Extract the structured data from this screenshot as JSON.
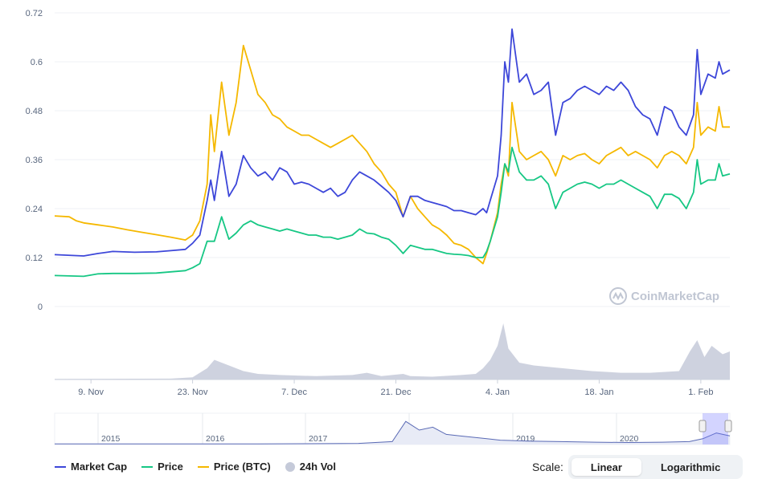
{
  "legend": {
    "market_cap": "Market Cap",
    "price": "Price",
    "price_btc": "Price (BTC)",
    "vol": "24h Vol"
  },
  "watermark": "CoinMarketCap",
  "scale": {
    "label": "Scale:",
    "linear": "Linear",
    "log": "Logarithmic"
  },
  "colors": {
    "market_cap": "#3d47d9",
    "price": "#16c784",
    "price_btc": "#f5b800",
    "volume": "#c5cad9",
    "navigator": "#5a6ab5"
  },
  "chart_data": {
    "type": "line",
    "y_ticks": [
      "0.72",
      "0.6",
      "0.48",
      "0.36",
      "0.24",
      "0.12",
      "0"
    ],
    "ylim": [
      0,
      0.72
    ],
    "x_ticks": [
      "9. Nov",
      "23. Nov",
      "7. Dec",
      "21. Dec",
      "4. Jan",
      "18. Jan",
      "1. Feb"
    ],
    "x_tick_days": [
      9,
      23,
      37,
      51,
      65,
      79,
      93
    ],
    "x_range_days": [
      4,
      97
    ],
    "series": [
      {
        "name": "Market Cap",
        "color": "#3d47d9",
        "points": [
          [
            4,
            0.127
          ],
          [
            8,
            0.124
          ],
          [
            10,
            0.13
          ],
          [
            12,
            0.135
          ],
          [
            15,
            0.133
          ],
          [
            18,
            0.134
          ],
          [
            20,
            0.137
          ],
          [
            22,
            0.14
          ],
          [
            23,
            0.155
          ],
          [
            24,
            0.175
          ],
          [
            25,
            0.26
          ],
          [
            25.5,
            0.31
          ],
          [
            26,
            0.26
          ],
          [
            27,
            0.38
          ],
          [
            28,
            0.27
          ],
          [
            29,
            0.3
          ],
          [
            30,
            0.37
          ],
          [
            31,
            0.34
          ],
          [
            32,
            0.32
          ],
          [
            33,
            0.33
          ],
          [
            34,
            0.31
          ],
          [
            35,
            0.34
          ],
          [
            36,
            0.33
          ],
          [
            37,
            0.3
          ],
          [
            38,
            0.305
          ],
          [
            39,
            0.3
          ],
          [
            40,
            0.29
          ],
          [
            41,
            0.28
          ],
          [
            42,
            0.29
          ],
          [
            43,
            0.27
          ],
          [
            44,
            0.28
          ],
          [
            45,
            0.31
          ],
          [
            46,
            0.33
          ],
          [
            47,
            0.32
          ],
          [
            48,
            0.31
          ],
          [
            49,
            0.295
          ],
          [
            50,
            0.28
          ],
          [
            51,
            0.26
          ],
          [
            52,
            0.22
          ],
          [
            53,
            0.27
          ],
          [
            54,
            0.27
          ],
          [
            55,
            0.26
          ],
          [
            56,
            0.255
          ],
          [
            57,
            0.25
          ],
          [
            58,
            0.245
          ],
          [
            59,
            0.235
          ],
          [
            60,
            0.235
          ],
          [
            61,
            0.23
          ],
          [
            62,
            0.225
          ],
          [
            63,
            0.24
          ],
          [
            63.5,
            0.23
          ],
          [
            64,
            0.26
          ],
          [
            65,
            0.32
          ],
          [
            65.5,
            0.42
          ],
          [
            66,
            0.6
          ],
          [
            66.5,
            0.55
          ],
          [
            67,
            0.68
          ],
          [
            68,
            0.55
          ],
          [
            69,
            0.57
          ],
          [
            70,
            0.52
          ],
          [
            71,
            0.53
          ],
          [
            72,
            0.55
          ],
          [
            73,
            0.42
          ],
          [
            74,
            0.5
          ],
          [
            75,
            0.51
          ],
          [
            76,
            0.53
          ],
          [
            77,
            0.54
          ],
          [
            78,
            0.53
          ],
          [
            79,
            0.52
          ],
          [
            80,
            0.54
          ],
          [
            81,
            0.53
          ],
          [
            82,
            0.55
          ],
          [
            83,
            0.53
          ],
          [
            84,
            0.49
          ],
          [
            85,
            0.47
          ],
          [
            86,
            0.46
          ],
          [
            87,
            0.42
          ],
          [
            88,
            0.49
          ],
          [
            89,
            0.48
          ],
          [
            90,
            0.44
          ],
          [
            91,
            0.42
          ],
          [
            92,
            0.47
          ],
          [
            92.5,
            0.63
          ],
          [
            93,
            0.52
          ],
          [
            94,
            0.57
          ],
          [
            95,
            0.56
          ],
          [
            95.5,
            0.6
          ],
          [
            96,
            0.57
          ],
          [
            97,
            0.58
          ]
        ]
      },
      {
        "name": "Price",
        "color": "#16c784",
        "points": [
          [
            4,
            0.076
          ],
          [
            8,
            0.074
          ],
          [
            10,
            0.08
          ],
          [
            12,
            0.081
          ],
          [
            15,
            0.081
          ],
          [
            18,
            0.082
          ],
          [
            20,
            0.085
          ],
          [
            22,
            0.088
          ],
          [
            23,
            0.095
          ],
          [
            24,
            0.105
          ],
          [
            25,
            0.16
          ],
          [
            26,
            0.16
          ],
          [
            27,
            0.22
          ],
          [
            28,
            0.165
          ],
          [
            29,
            0.18
          ],
          [
            30,
            0.2
          ],
          [
            31,
            0.21
          ],
          [
            32,
            0.2
          ],
          [
            33,
            0.195
          ],
          [
            34,
            0.19
          ],
          [
            35,
            0.185
          ],
          [
            36,
            0.19
          ],
          [
            37,
            0.185
          ],
          [
            38,
            0.18
          ],
          [
            39,
            0.175
          ],
          [
            40,
            0.175
          ],
          [
            41,
            0.17
          ],
          [
            42,
            0.17
          ],
          [
            43,
            0.165
          ],
          [
            44,
            0.17
          ],
          [
            45,
            0.175
          ],
          [
            46,
            0.19
          ],
          [
            47,
            0.18
          ],
          [
            48,
            0.178
          ],
          [
            49,
            0.17
          ],
          [
            50,
            0.165
          ],
          [
            51,
            0.15
          ],
          [
            52,
            0.13
          ],
          [
            53,
            0.15
          ],
          [
            54,
            0.145
          ],
          [
            55,
            0.14
          ],
          [
            56,
            0.14
          ],
          [
            57,
            0.135
          ],
          [
            58,
            0.13
          ],
          [
            59,
            0.128
          ],
          [
            60,
            0.127
          ],
          [
            61,
            0.125
          ],
          [
            62,
            0.12
          ],
          [
            63,
            0.12
          ],
          [
            63.5,
            0.135
          ],
          [
            64,
            0.16
          ],
          [
            65,
            0.22
          ],
          [
            65.5,
            0.28
          ],
          [
            66,
            0.35
          ],
          [
            66.5,
            0.33
          ],
          [
            67,
            0.39
          ],
          [
            68,
            0.33
          ],
          [
            69,
            0.31
          ],
          [
            70,
            0.31
          ],
          [
            71,
            0.32
          ],
          [
            72,
            0.3
          ],
          [
            73,
            0.24
          ],
          [
            74,
            0.28
          ],
          [
            75,
            0.29
          ],
          [
            76,
            0.3
          ],
          [
            77,
            0.305
          ],
          [
            78,
            0.3
          ],
          [
            79,
            0.29
          ],
          [
            80,
            0.3
          ],
          [
            81,
            0.3
          ],
          [
            82,
            0.31
          ],
          [
            83,
            0.3
          ],
          [
            84,
            0.29
          ],
          [
            85,
            0.28
          ],
          [
            86,
            0.27
          ],
          [
            87,
            0.24
          ],
          [
            88,
            0.275
          ],
          [
            89,
            0.275
          ],
          [
            90,
            0.265
          ],
          [
            91,
            0.24
          ],
          [
            92,
            0.28
          ],
          [
            92.5,
            0.36
          ],
          [
            93,
            0.3
          ],
          [
            94,
            0.31
          ],
          [
            95,
            0.31
          ],
          [
            95.5,
            0.35
          ],
          [
            96,
            0.32
          ],
          [
            97,
            0.325
          ]
        ]
      },
      {
        "name": "Price (BTC)",
        "color": "#f5b800",
        "points": [
          [
            4,
            0.222
          ],
          [
            6,
            0.22
          ],
          [
            7,
            0.21
          ],
          [
            8,
            0.205
          ],
          [
            10,
            0.2
          ],
          [
            12,
            0.195
          ],
          [
            14,
            0.188
          ],
          [
            16,
            0.182
          ],
          [
            18,
            0.176
          ],
          [
            20,
            0.17
          ],
          [
            22,
            0.163
          ],
          [
            23,
            0.175
          ],
          [
            24,
            0.21
          ],
          [
            25,
            0.3
          ],
          [
            25.5,
            0.47
          ],
          [
            26,
            0.38
          ],
          [
            27,
            0.55
          ],
          [
            28,
            0.42
          ],
          [
            29,
            0.5
          ],
          [
            30,
            0.64
          ],
          [
            31,
            0.58
          ],
          [
            32,
            0.52
          ],
          [
            33,
            0.5
          ],
          [
            34,
            0.47
          ],
          [
            35,
            0.46
          ],
          [
            36,
            0.44
          ],
          [
            37,
            0.43
          ],
          [
            38,
            0.42
          ],
          [
            39,
            0.42
          ],
          [
            40,
            0.41
          ],
          [
            41,
            0.4
          ],
          [
            42,
            0.39
          ],
          [
            43,
            0.4
          ],
          [
            44,
            0.41
          ],
          [
            45,
            0.42
          ],
          [
            46,
            0.4
          ],
          [
            47,
            0.38
          ],
          [
            48,
            0.35
          ],
          [
            49,
            0.33
          ],
          [
            50,
            0.3
          ],
          [
            51,
            0.28
          ],
          [
            52,
            0.22
          ],
          [
            53,
            0.27
          ],
          [
            54,
            0.24
          ],
          [
            55,
            0.22
          ],
          [
            56,
            0.2
          ],
          [
            57,
            0.19
          ],
          [
            58,
            0.175
          ],
          [
            59,
            0.155
          ],
          [
            60,
            0.15
          ],
          [
            61,
            0.14
          ],
          [
            62,
            0.12
          ],
          [
            63,
            0.105
          ],
          [
            63.5,
            0.13
          ],
          [
            64,
            0.16
          ],
          [
            65,
            0.23
          ],
          [
            65.5,
            0.3
          ],
          [
            66,
            0.35
          ],
          [
            66.5,
            0.32
          ],
          [
            67,
            0.5
          ],
          [
            68,
            0.38
          ],
          [
            69,
            0.36
          ],
          [
            70,
            0.37
          ],
          [
            71,
            0.38
          ],
          [
            72,
            0.36
          ],
          [
            73,
            0.32
          ],
          [
            74,
            0.37
          ],
          [
            75,
            0.36
          ],
          [
            76,
            0.37
          ],
          [
            77,
            0.375
          ],
          [
            78,
            0.36
          ],
          [
            79,
            0.35
          ],
          [
            80,
            0.37
          ],
          [
            81,
            0.38
          ],
          [
            82,
            0.39
          ],
          [
            83,
            0.37
          ],
          [
            84,
            0.38
          ],
          [
            85,
            0.37
          ],
          [
            86,
            0.36
          ],
          [
            87,
            0.34
          ],
          [
            88,
            0.37
          ],
          [
            89,
            0.38
          ],
          [
            90,
            0.37
          ],
          [
            91,
            0.35
          ],
          [
            92,
            0.39
          ],
          [
            92.5,
            0.5
          ],
          [
            93,
            0.42
          ],
          [
            94,
            0.44
          ],
          [
            95,
            0.43
          ],
          [
            95.5,
            0.49
          ],
          [
            96,
            0.44
          ],
          [
            97,
            0.44
          ]
        ]
      }
    ],
    "volume": [
      [
        4,
        0.01
      ],
      [
        20,
        0.015
      ],
      [
        23,
        0.04
      ],
      [
        25,
        0.2
      ],
      [
        26,
        0.35
      ],
      [
        28,
        0.25
      ],
      [
        30,
        0.15
      ],
      [
        32,
        0.1
      ],
      [
        35,
        0.08
      ],
      [
        40,
        0.06
      ],
      [
        45,
        0.08
      ],
      [
        47,
        0.12
      ],
      [
        49,
        0.06
      ],
      [
        52,
        0.1
      ],
      [
        53,
        0.06
      ],
      [
        56,
        0.05
      ],
      [
        60,
        0.08
      ],
      [
        62,
        0.1
      ],
      [
        63,
        0.2
      ],
      [
        64,
        0.35
      ],
      [
        65,
        0.6
      ],
      [
        65.8,
        1.0
      ],
      [
        66.5,
        0.55
      ],
      [
        68,
        0.3
      ],
      [
        70,
        0.25
      ],
      [
        74,
        0.2
      ],
      [
        78,
        0.15
      ],
      [
        82,
        0.12
      ],
      [
        86,
        0.12
      ],
      [
        90,
        0.15
      ],
      [
        91.5,
        0.5
      ],
      [
        92.5,
        0.7
      ],
      [
        93.5,
        0.4
      ],
      [
        94.5,
        0.6
      ],
      [
        96,
        0.45
      ],
      [
        97,
        0.5
      ]
    ],
    "navigator": {
      "years": [
        "2015",
        "2016",
        "2017",
        "2018",
        "2019",
        "2020"
      ],
      "series": [
        [
          0,
          0.02
        ],
        [
          0.3,
          0.02
        ],
        [
          0.45,
          0.04
        ],
        [
          0.5,
          0.1
        ],
        [
          0.52,
          0.8
        ],
        [
          0.54,
          0.5
        ],
        [
          0.56,
          0.6
        ],
        [
          0.58,
          0.35
        ],
        [
          0.6,
          0.3
        ],
        [
          0.62,
          0.25
        ],
        [
          0.64,
          0.2
        ],
        [
          0.66,
          0.15
        ],
        [
          0.7,
          0.12
        ],
        [
          0.75,
          0.1
        ],
        [
          0.8,
          0.08
        ],
        [
          0.85,
          0.07
        ],
        [
          0.9,
          0.08
        ],
        [
          0.94,
          0.1
        ],
        [
          0.96,
          0.2
        ],
        [
          0.98,
          0.4
        ],
        [
          1,
          0.3
        ]
      ]
    }
  }
}
